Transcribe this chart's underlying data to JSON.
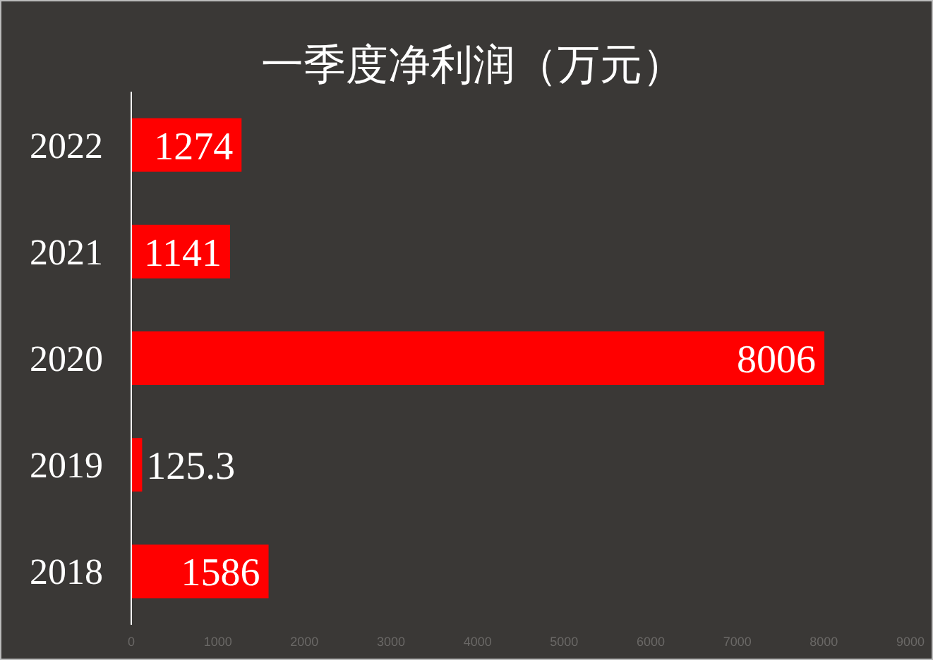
{
  "chart_data": {
    "type": "bar",
    "orientation": "horizontal",
    "title": "一季度净利润（万元）",
    "categories": [
      "2022",
      "2021",
      "2020",
      "2019",
      "2018"
    ],
    "values": [
      1274,
      1141,
      8006,
      125.3,
      1586
    ],
    "color": "#ff0000",
    "data_labels": true,
    "xlim": [
      0,
      9000
    ],
    "xticks": [
      0,
      1000,
      2000,
      3000,
      4000,
      5000,
      6000,
      7000,
      8000,
      9000
    ]
  }
}
